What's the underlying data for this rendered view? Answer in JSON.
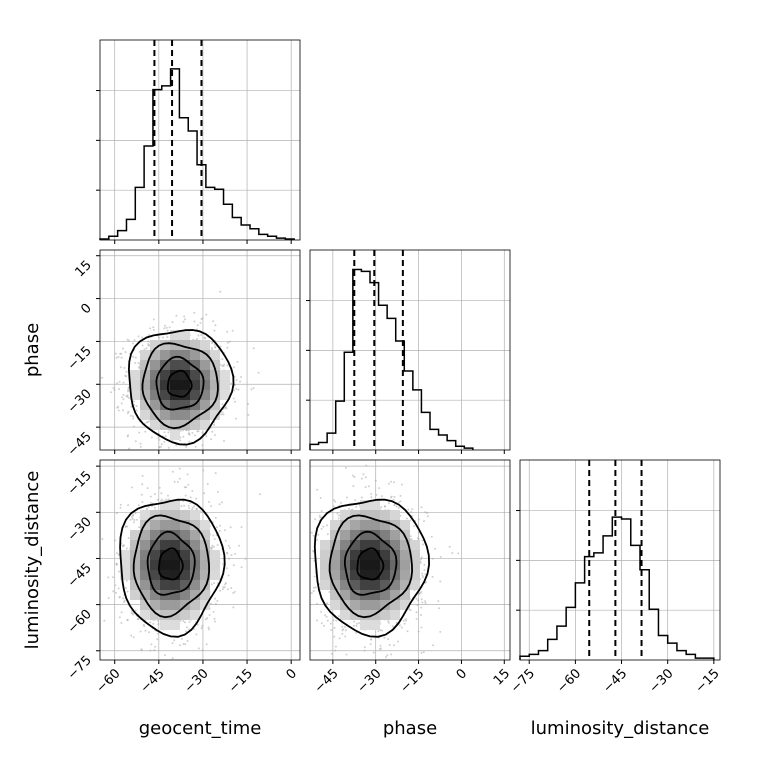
{
  "chart_data": {
    "type": "corner",
    "parameters": [
      "geocent_time",
      "phase",
      "luminosity_distance"
    ],
    "quantiles": {
      "geocent_time": [
        -46.5,
        -40.5,
        -30.5
      ],
      "phase": [
        -37.5,
        -30.5,
        -20.5
      ],
      "luminosity_distance": [
        -55.5,
        -47,
        -38.5
      ]
    },
    "ticks": {
      "geocent_time": [
        -60,
        -45,
        -30,
        -15,
        0
      ],
      "phase": [
        -45,
        -30,
        -15,
        0,
        15
      ],
      "luminosity_distance": [
        -75,
        -60,
        -45,
        -30,
        -15
      ]
    },
    "ranges": {
      "geocent_time": [
        -65,
        3
      ],
      "phase": [
        -53,
        17
      ],
      "luminosity_distance": [
        -78,
        -13
      ]
    },
    "histograms": {
      "geocent_time": {
        "edges": [
          -65,
          -62,
          -59,
          -56,
          -53,
          -50,
          -47,
          -44,
          -41,
          -38,
          -35,
          -32,
          -29,
          -26,
          -23,
          -20,
          -17,
          -14,
          -11,
          -8,
          -5,
          -2,
          1
        ],
        "counts": [
          0.005,
          0.02,
          0.05,
          0.11,
          0.28,
          0.5,
          0.8,
          0.82,
          0.91,
          0.65,
          0.58,
          0.4,
          0.28,
          0.27,
          0.19,
          0.12,
          0.08,
          0.06,
          0.03,
          0.02,
          0.01,
          0.005
        ]
      },
      "phase": {
        "edges": [
          -53,
          -50,
          -47,
          -44,
          -41,
          -38,
          -35,
          -32,
          -29,
          -26,
          -23,
          -20,
          -17,
          -14,
          -11,
          -8,
          -5,
          -2,
          1,
          4
        ],
        "counts": [
          0.03,
          0.04,
          0.09,
          0.26,
          0.52,
          0.96,
          0.95,
          0.89,
          0.77,
          0.7,
          0.58,
          0.42,
          0.32,
          0.2,
          0.11,
          0.08,
          0.05,
          0.02,
          0.01
        ]
      },
      "luminosity_distance": {
        "edges": [
          -78,
          -75,
          -72,
          -69,
          -66,
          -63,
          -60,
          -57,
          -54,
          -51,
          -48,
          -45,
          -42,
          -39,
          -36,
          -33,
          -30,
          -27,
          -24,
          -21,
          -18,
          -15
        ],
        "counts": [
          0.02,
          0.03,
          0.05,
          0.11,
          0.18,
          0.28,
          0.41,
          0.55,
          0.57,
          0.66,
          0.76,
          0.75,
          0.61,
          0.48,
          0.27,
          0.13,
          0.09,
          0.05,
          0.03,
          0.01,
          0.01
        ]
      }
    },
    "pair_distributions": [
      {
        "x": "geocent_time",
        "y": "phase",
        "mean": [
          -38,
          -30
        ],
        "sd": [
          8,
          9
        ]
      },
      {
        "x": "geocent_time",
        "y": "luminosity_distance",
        "mean": [
          -41,
          -47
        ],
        "sd": [
          8,
          10
        ]
      },
      {
        "x": "phase",
        "y": "luminosity_distance",
        "mean": [
          -32,
          -47
        ],
        "sd": [
          9,
          10
        ]
      }
    ],
    "grid": true
  }
}
